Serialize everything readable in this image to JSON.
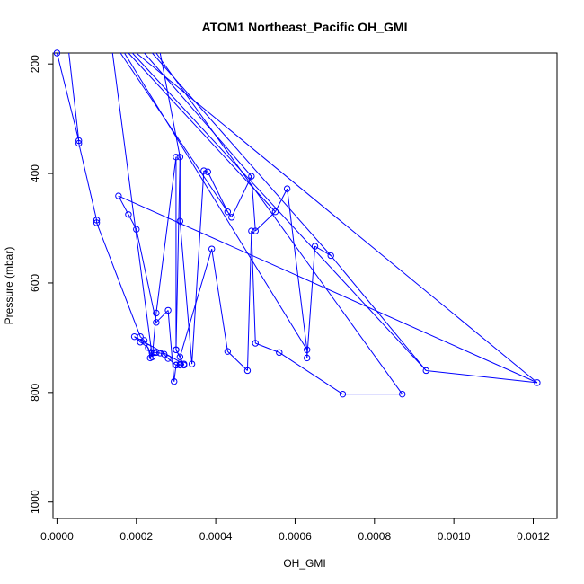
{
  "chart_data": {
    "type": "line",
    "title": "ATOM1 Northeast_Pacific OH_GMI",
    "xlabel": "OH_GMI",
    "ylabel": "Pressure (mbar)",
    "xlim": [
      -1e-05,
      0.00126
    ],
    "ylim": [
      1030,
      180
    ],
    "y_reversed": true,
    "x_ticks": [
      0.0,
      0.0002,
      0.0004,
      0.0006,
      0.0008,
      0.001,
      0.0012
    ],
    "x_tick_labels": [
      "0.0000",
      "0.0002",
      "0.0004",
      "0.0006",
      "0.0008",
      "0.0010",
      "0.0012"
    ],
    "y_ticks": [
      200,
      400,
      600,
      800,
      1000
    ],
    "y_tick_labels": [
      "200",
      "400",
      "600",
      "800",
      "1000"
    ],
    "series_color": "#0000ff",
    "marker": "open-circle",
    "x_values": [
      0.0,
      5.5e-05,
      5.5e-05,
      0.0001,
      0.0001,
      0.00021,
      0.00022,
      0.00024,
      0.00025,
      0.0003,
      0.0003,
      0.00031,
      0.00031,
      0.00034,
      0.00037,
      0.00038,
      0.00043,
      0.00044,
      0.00049,
      0.0005,
      0.00055,
      0.00058,
      0.00063,
      0.00063,
      0.00065,
      0.00069,
      0.00093,
      0.00121,
      0.000155,
      0.00018,
      0.0002,
      0.00025,
      0.00028,
      0.000295,
      0.0003,
      0.00031,
      0.00032,
      0.000195,
      0.00021,
      0.00023,
      0.000235,
      0.00024,
      0.000245,
      0.00025,
      0.00026,
      0.00027,
      0.00028,
      0.0003,
      0.00031,
      0.00032,
      0.0003,
      0.00031,
      0.00039,
      0.00043,
      0.00048,
      0.00049,
      0.0005,
      0.00056,
      0.00072,
      0.00087
    ],
    "y_values": [
      180,
      340,
      345,
      485,
      490,
      698,
      705,
      735,
      655,
      370,
      722,
      370,
      487,
      748,
      395,
      397,
      470,
      480,
      405,
      505,
      470,
      428,
      722,
      737,
      533,
      550,
      760,
      782,
      441,
      475,
      502,
      672,
      650,
      780,
      750,
      748,
      748,
      698,
      708,
      718,
      737,
      728,
      727,
      727,
      728,
      730,
      738,
      750,
      750,
      750,
      722,
      735,
      538,
      725,
      760,
      505,
      710,
      727,
      803,
      803
    ]
  }
}
